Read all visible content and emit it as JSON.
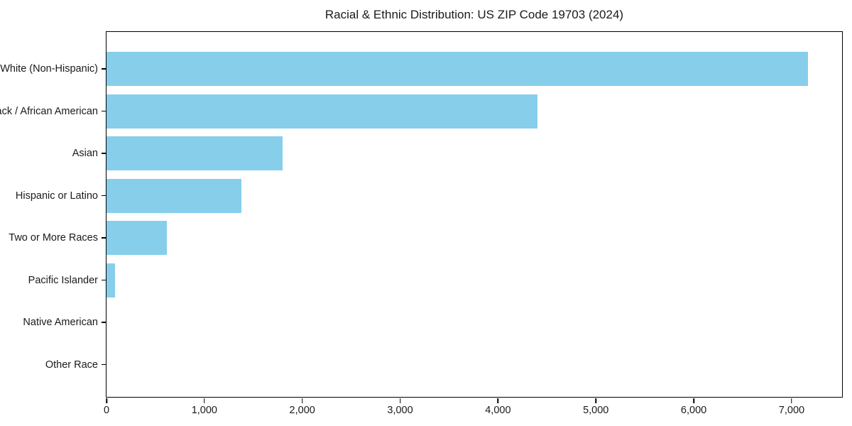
{
  "title": "Racial & Ethnic Distribution: US ZIP Code 19703 (2024)",
  "colors": {
    "bar": "#87CEEB",
    "text": "#1a1a1a",
    "spine": "#000000",
    "background": "#ffffff"
  },
  "chart_data": {
    "type": "bar",
    "orientation": "horizontal",
    "title": "Racial & Ethnic Distribution: US ZIP Code 19703 (2024)",
    "xlabel": "",
    "ylabel": "",
    "categories": [
      "White (Non-Hispanic)",
      "Black / African American",
      "Asian",
      "Hispanic or Latino",
      "Two or More Races",
      "Pacific Islander",
      "Native American",
      "Other Race"
    ],
    "values": [
      7170,
      4400,
      1800,
      1375,
      620,
      90,
      0,
      0
    ],
    "bar_color": "#87CEEB",
    "xlim": [
      0,
      7530
    ],
    "x_ticks": [
      0,
      1000,
      2000,
      3000,
      4000,
      5000,
      6000,
      7000
    ],
    "x_tick_labels": [
      "0",
      "1,000",
      "2,000",
      "3,000",
      "4,000",
      "5,000",
      "6,000",
      "7,000"
    ],
    "grid": false,
    "legend": false
  }
}
